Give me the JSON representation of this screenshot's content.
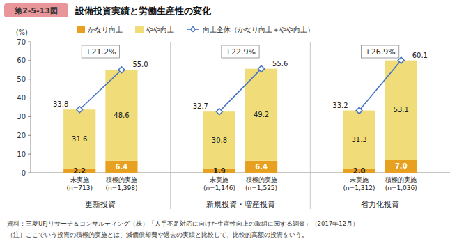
{
  "chart_data": {
    "type": "bar",
    "figure_number": "第2-5-13図",
    "title": "設備投資実績と労働生産性の変化",
    "y_label": "(%)",
    "source": "資料：三菱UFJリサーチ＆コンサルティング（株）「人手不足対応に向けた生産性向上の取組に関する調査」（2017年12月）",
    "note": "（注）ここでいう投資の積極的実施とは、減価償却費や過去の実績と比較して、比較的高額の投資をいう。",
    "categories": [
      "未実施\n(n=713)",
      "積極的実施\n(n=1,398)",
      "未実施\n(n=1,146)",
      "積極的実施\n(n=1,525)",
      "未実施\n(n=1,312)",
      "積極的実施\n(n=1,036)"
    ],
    "groups": [
      {
        "name": "更新投資",
        "annotation": "+21.2%"
      },
      {
        "name": "新規投資・増産投資",
        "annotation": "+22.9%"
      },
      {
        "name": "省力化投資",
        "annotation": "+26.9%"
      }
    ],
    "series": [
      {
        "name": "かなり向上",
        "color": "#E8A020",
        "values": [
          2.2,
          6.4,
          1.9,
          6.4,
          2.0,
          7.0
        ],
        "value_labels": [
          "2.2",
          "6.4",
          "1.9",
          "6.4",
          "2.0",
          "7.0"
        ]
      },
      {
        "name": "やや向上",
        "color": "#F0DC78",
        "values": [
          31.6,
          48.6,
          30.8,
          49.2,
          31.3,
          53.1
        ],
        "value_labels": [
          "31.6",
          "48.6",
          "30.8",
          "49.2",
          "31.3",
          "53.1"
        ]
      },
      {
        "name": "向上全体（かなり向上＋やや向上）",
        "type": "line",
        "marker": "diamond",
        "color": "#4472C4",
        "values": [
          33.8,
          55.0,
          32.7,
          55.6,
          33.2,
          60.1
        ],
        "value_labels": [
          "33.8",
          "55.0",
          "32.7",
          "55.6",
          "33.2",
          "60.1"
        ]
      }
    ],
    "stacked": true,
    "data_labels": true,
    "ylim": [
      0,
      70
    ],
    "yticks": [
      0,
      10,
      20,
      30,
      40,
      50,
      60,
      70
    ],
    "grid": false,
    "legend": "top"
  }
}
